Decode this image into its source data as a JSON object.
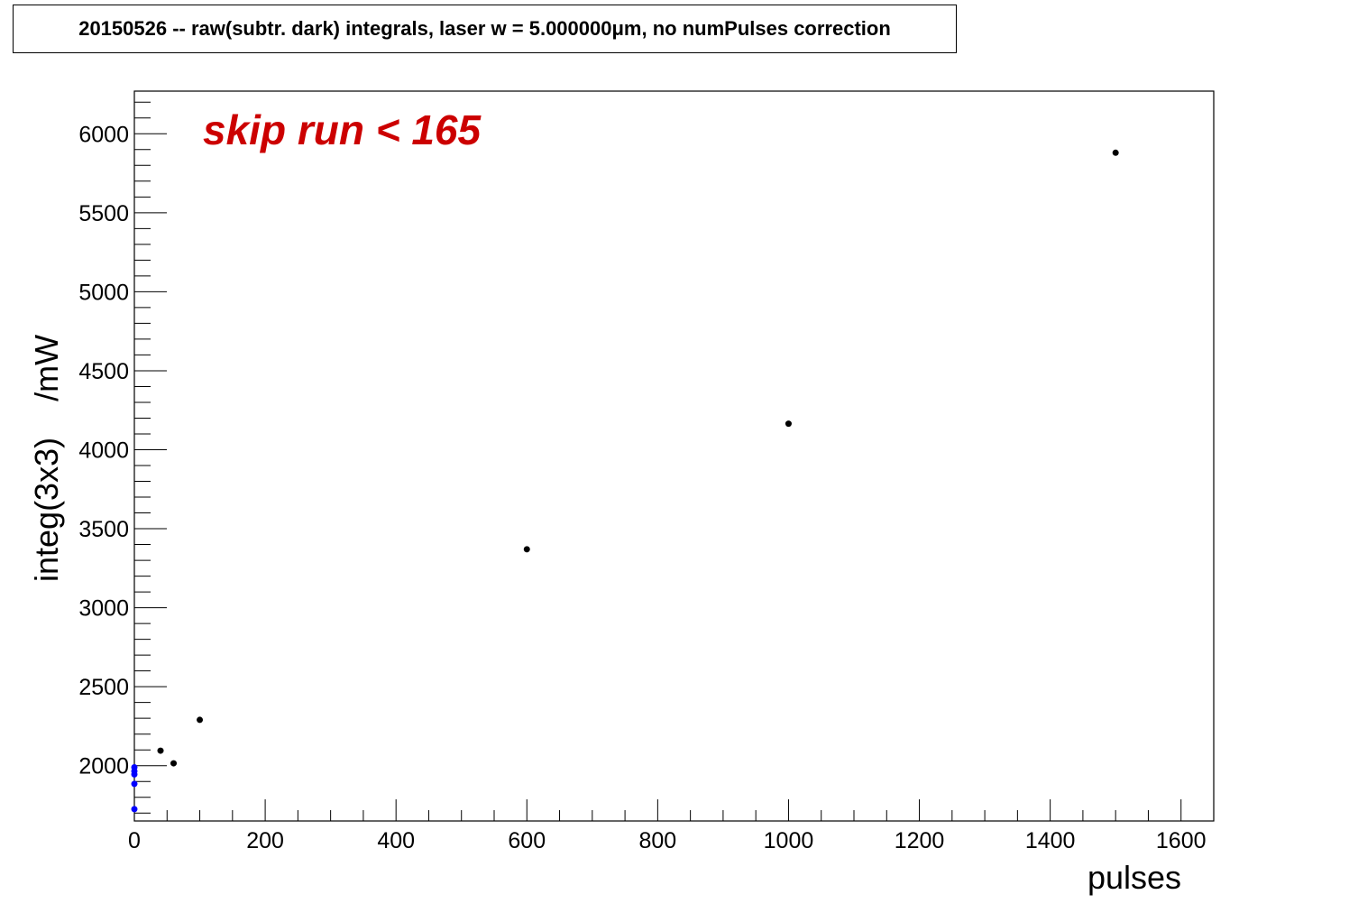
{
  "chart_data": {
    "type": "scatter",
    "title": "20150526 -- raw(subtr. dark) integrals, laser w = 5.000000μm, no numPulses correction",
    "xlabel": "pulses",
    "ylabel": "integ(3x3)    /mW",
    "xlim": [
      0,
      1650
    ],
    "ylim": [
      1650,
      6270
    ],
    "x_ticks": [
      0,
      200,
      400,
      600,
      800,
      1000,
      1200,
      1400,
      1600
    ],
    "y_ticks": [
      2000,
      2500,
      3000,
      3500,
      4000,
      4500,
      5000,
      5500,
      6000
    ],
    "grid": false,
    "series": [
      {
        "color": "#000000",
        "points": [
          {
            "x": 40,
            "y": 2095
          },
          {
            "x": 60,
            "y": 2015
          },
          {
            "x": 100,
            "y": 2290
          },
          {
            "x": 600,
            "y": 3370
          },
          {
            "x": 1000,
            "y": 4165
          },
          {
            "x": 1500,
            "y": 5880
          }
        ]
      },
      {
        "color": "#0000ff",
        "points": [
          {
            "x": 0,
            "y": 1990
          },
          {
            "x": 0,
            "y": 1965
          },
          {
            "x": 0,
            "y": 1945
          },
          {
            "x": 0,
            "y": 1885
          },
          {
            "x": 0,
            "y": 1725
          }
        ]
      }
    ],
    "annotation": {
      "text": "skip run < 165",
      "color": "#cc0000"
    }
  }
}
